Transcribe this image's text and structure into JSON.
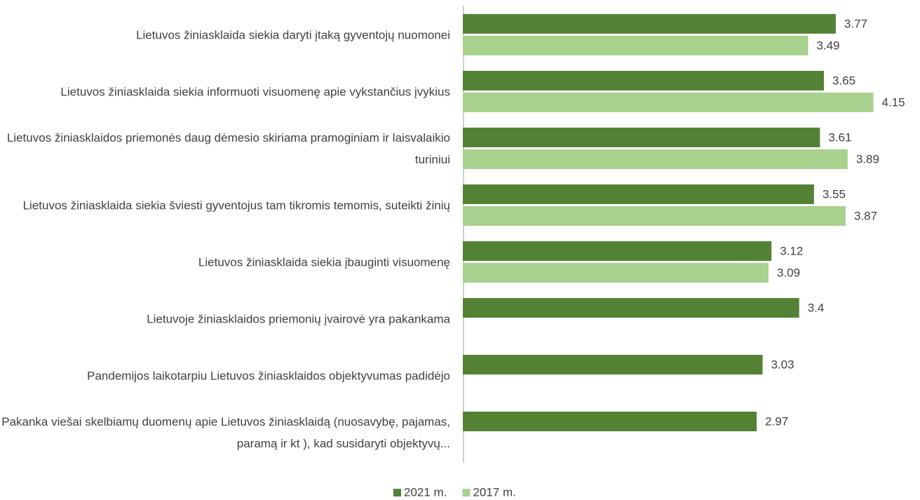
{
  "chart_data": {
    "type": "bar",
    "orientation": "horizontal",
    "categories": [
      "Lietuvos žiniasklaida siekia daryti įtaką gyventojų nuomonei",
      "Lietuvos žiniasklaida siekia informuoti visuomenę apie vykstančius įvykius",
      "Lietuvos žiniasklaidos priemonės daug dėmesio skiriama pramoginiam ir laisvalaikio turiniui",
      "Lietuvos žiniasklaida siekia šviesti gyventojus tam tikromis temomis, suteikti žinių",
      "Lietuvos žiniasklaida siekia įbauginti visuomenę",
      "Lietuvoje žiniasklaidos priemonių įvairovė yra pakankama",
      "Pandemijos laikotarpiu Lietuvos žiniasklaidos objektyvumas padidėjo",
      "Pakanka viešai skelbiamų duomenų apie Lietuvos žiniasklaidą (nuosavybę, pajamas, paramą ir kt ), kad susidaryti objektyvų..."
    ],
    "series": [
      {
        "name": "2021 m.",
        "color": "#548235",
        "values": [
          3.77,
          3.65,
          3.61,
          3.55,
          3.12,
          3.4,
          3.03,
          2.97
        ]
      },
      {
        "name": "2017 m.",
        "color": "#a9d18e",
        "values": [
          3.49,
          4.15,
          3.89,
          3.87,
          3.09,
          null,
          null,
          null
        ]
      }
    ],
    "xlim": [
      0,
      4.6
    ],
    "legend": "bottom"
  }
}
